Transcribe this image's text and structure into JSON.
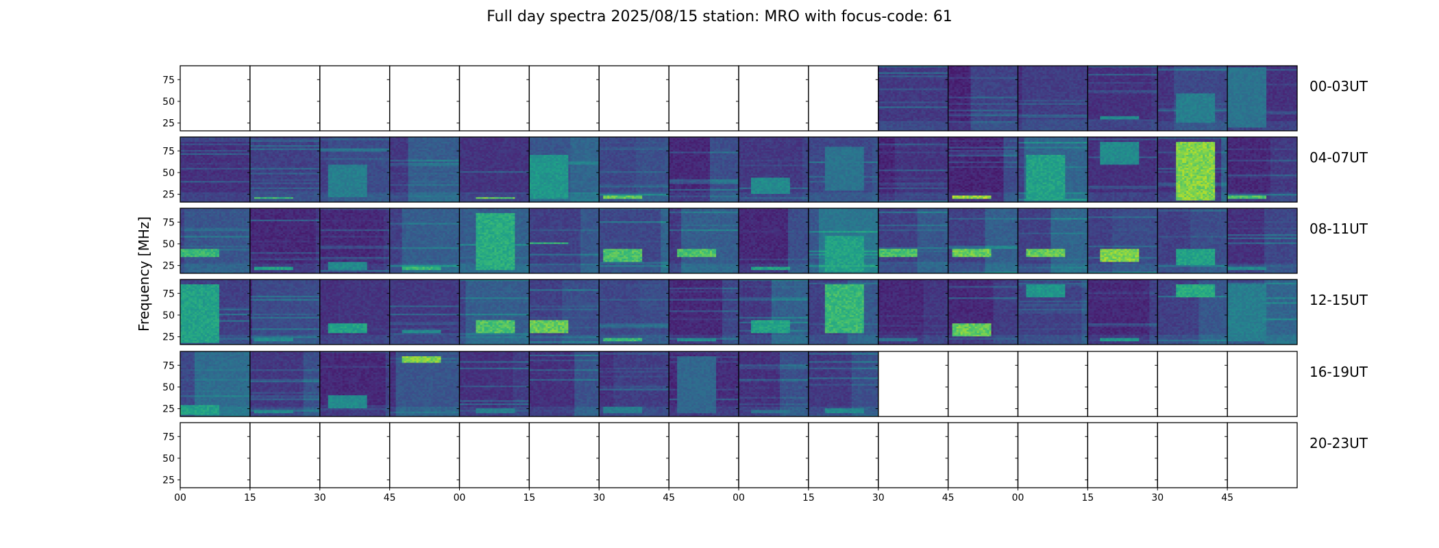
{
  "chart_data": {
    "type": "heatmap",
    "title": "Full day spectra 2025/08/15 station: MRO with focus-code: 61",
    "ylabel": "Frequency [MHz]",
    "xlabel": "",
    "ylim": [
      16,
      91
    ],
    "yticks": [
      "25",
      "50",
      "75"
    ],
    "ytick_values": [
      25,
      50,
      75
    ],
    "xticks": [
      "00",
      "15",
      "30",
      "45",
      "00",
      "15",
      "30",
      "45",
      "00",
      "15",
      "30",
      "45",
      "00",
      "15",
      "30",
      "45"
    ],
    "colormap": "viridis",
    "colors": [
      "#440154",
      "#482878",
      "#3e4989",
      "#31688e",
      "#26828e",
      "#1f9e89",
      "#35b779",
      "#6ece58",
      "#b5de2b",
      "#fde725"
    ],
    "minutes_per_panel": 15,
    "panels_per_row": 16,
    "rows": [
      {
        "label": "00-03UT",
        "data_panels": [
          0,
          0,
          0,
          0,
          0,
          0,
          0,
          0,
          0,
          0,
          1,
          1,
          1,
          1,
          1,
          1
        ],
        "level": [
          0,
          0,
          0,
          0,
          0,
          0,
          0,
          0,
          0,
          0,
          0.25,
          0.12,
          0.18,
          0.2,
          0.22,
          0.2
        ],
        "bright": [
          null,
          null,
          null,
          null,
          null,
          null,
          null,
          null,
          null,
          null,
          null,
          null,
          null,
          [
            30,
            32,
            0.5
          ],
          [
            25,
            60,
            0.45
          ],
          [
            20,
            90,
            0.4
          ]
        ]
      },
      {
        "label": "04-07UT",
        "data_panels": [
          1,
          1,
          1,
          1,
          1,
          1,
          1,
          1,
          1,
          1,
          1,
          1,
          1,
          1,
          1,
          1
        ],
        "level": [
          0.2,
          0.3,
          0.3,
          0.25,
          0.22,
          0.45,
          0.35,
          0.15,
          0.25,
          0.35,
          0.12,
          0.12,
          0.3,
          0.2,
          0.2,
          0.15
        ],
        "bright": [
          null,
          [
            20,
            22,
            0.7
          ],
          [
            22,
            60,
            0.45
          ],
          null,
          [
            20,
            22,
            0.8
          ],
          [
            20,
            70,
            0.55
          ],
          [
            20,
            24,
            0.8
          ],
          null,
          [
            25,
            45,
            0.5
          ],
          [
            30,
            80,
            0.4
          ],
          null,
          [
            20,
            23,
            0.9
          ],
          [
            18,
            70,
            0.6
          ],
          [
            60,
            85,
            0.5
          ],
          [
            18,
            85,
            0.85
          ],
          [
            20,
            23,
            0.75
          ]
        ]
      },
      {
        "label": "08-11UT",
        "data_panels": [
          1,
          1,
          1,
          1,
          1,
          1,
          1,
          1,
          1,
          1,
          1,
          1,
          1,
          1,
          1,
          1
        ],
        "level": [
          0.3,
          0.15,
          0.15,
          0.3,
          0.5,
          0.3,
          0.35,
          0.25,
          0.15,
          0.45,
          0.3,
          0.3,
          0.3,
          0.3,
          0.3,
          0.2
        ],
        "bright": [
          [
            35,
            45,
            0.7
          ],
          [
            20,
            23,
            0.6
          ],
          [
            20,
            30,
            0.5
          ],
          [
            20,
            23,
            0.7
          ],
          [
            20,
            85,
            0.65
          ],
          [
            50,
            52,
            0.7
          ],
          [
            30,
            45,
            0.75
          ],
          [
            35,
            45,
            0.75
          ],
          [
            20,
            23,
            0.6
          ],
          [
            18,
            60,
            0.6
          ],
          [
            35,
            45,
            0.75
          ],
          [
            35,
            45,
            0.8
          ],
          [
            35,
            45,
            0.8
          ],
          [
            30,
            45,
            0.85
          ],
          [
            25,
            45,
            0.6
          ],
          [
            20,
            23,
            0.5
          ]
        ]
      },
      {
        "label": "12-15UT",
        "data_panels": [
          1,
          1,
          1,
          1,
          1,
          1,
          1,
          1,
          1,
          1,
          1,
          1,
          1,
          1,
          1,
          1
        ],
        "level": [
          0.3,
          0.15,
          0.2,
          0.25,
          0.3,
          0.3,
          0.35,
          0.15,
          0.25,
          0.3,
          0.15,
          0.15,
          0.3,
          0.15,
          0.3,
          0.35
        ],
        "bright": [
          [
            18,
            85,
            0.6
          ],
          [
            20,
            23,
            0.5
          ],
          [
            30,
            40,
            0.6
          ],
          [
            30,
            33,
            0.5
          ],
          [
            30,
            45,
            0.75
          ],
          [
            30,
            45,
            0.8
          ],
          [
            20,
            23,
            0.7
          ],
          [
            20,
            23,
            0.5
          ],
          [
            30,
            45,
            0.6
          ],
          [
            30,
            85,
            0.7
          ],
          [
            20,
            23,
            0.4
          ],
          [
            25,
            40,
            0.8
          ],
          [
            70,
            85,
            0.55
          ],
          [
            20,
            23,
            0.55
          ],
          [
            70,
            85,
            0.65
          ],
          [
            20,
            85,
            0.45
          ]
        ]
      },
      {
        "label": "16-19UT",
        "data_panels": [
          1,
          1,
          1,
          1,
          1,
          1,
          1,
          1,
          1,
          1,
          0,
          0,
          0,
          0,
          0,
          0
        ],
        "level": [
          0.35,
          0.25,
          0.15,
          0.2,
          0.2,
          0.2,
          0.2,
          0.15,
          0.2,
          0.25,
          0,
          0,
          0,
          0,
          0,
          0
        ],
        "bright": [
          [
            18,
            30,
            0.6
          ],
          [
            20,
            23,
            0.5
          ],
          [
            25,
            40,
            0.5
          ],
          [
            78,
            85,
            0.85
          ],
          [
            20,
            25,
            0.45
          ],
          null,
          [
            20,
            28,
            0.45
          ],
          [
            20,
            85,
            0.35
          ],
          [
            20,
            23,
            0.4
          ],
          [
            20,
            25,
            0.5
          ],
          null,
          null,
          null,
          null,
          null,
          null
        ]
      },
      {
        "label": "20-23UT",
        "data_panels": [
          0,
          0,
          0,
          0,
          0,
          0,
          0,
          0,
          0,
          0,
          0,
          0,
          0,
          0,
          0,
          0
        ],
        "level": [
          0,
          0,
          0,
          0,
          0,
          0,
          0,
          0,
          0,
          0,
          0,
          0,
          0,
          0,
          0,
          0
        ],
        "bright": [
          null,
          null,
          null,
          null,
          null,
          null,
          null,
          null,
          null,
          null,
          null,
          null,
          null,
          null,
          null,
          null
        ]
      }
    ]
  }
}
